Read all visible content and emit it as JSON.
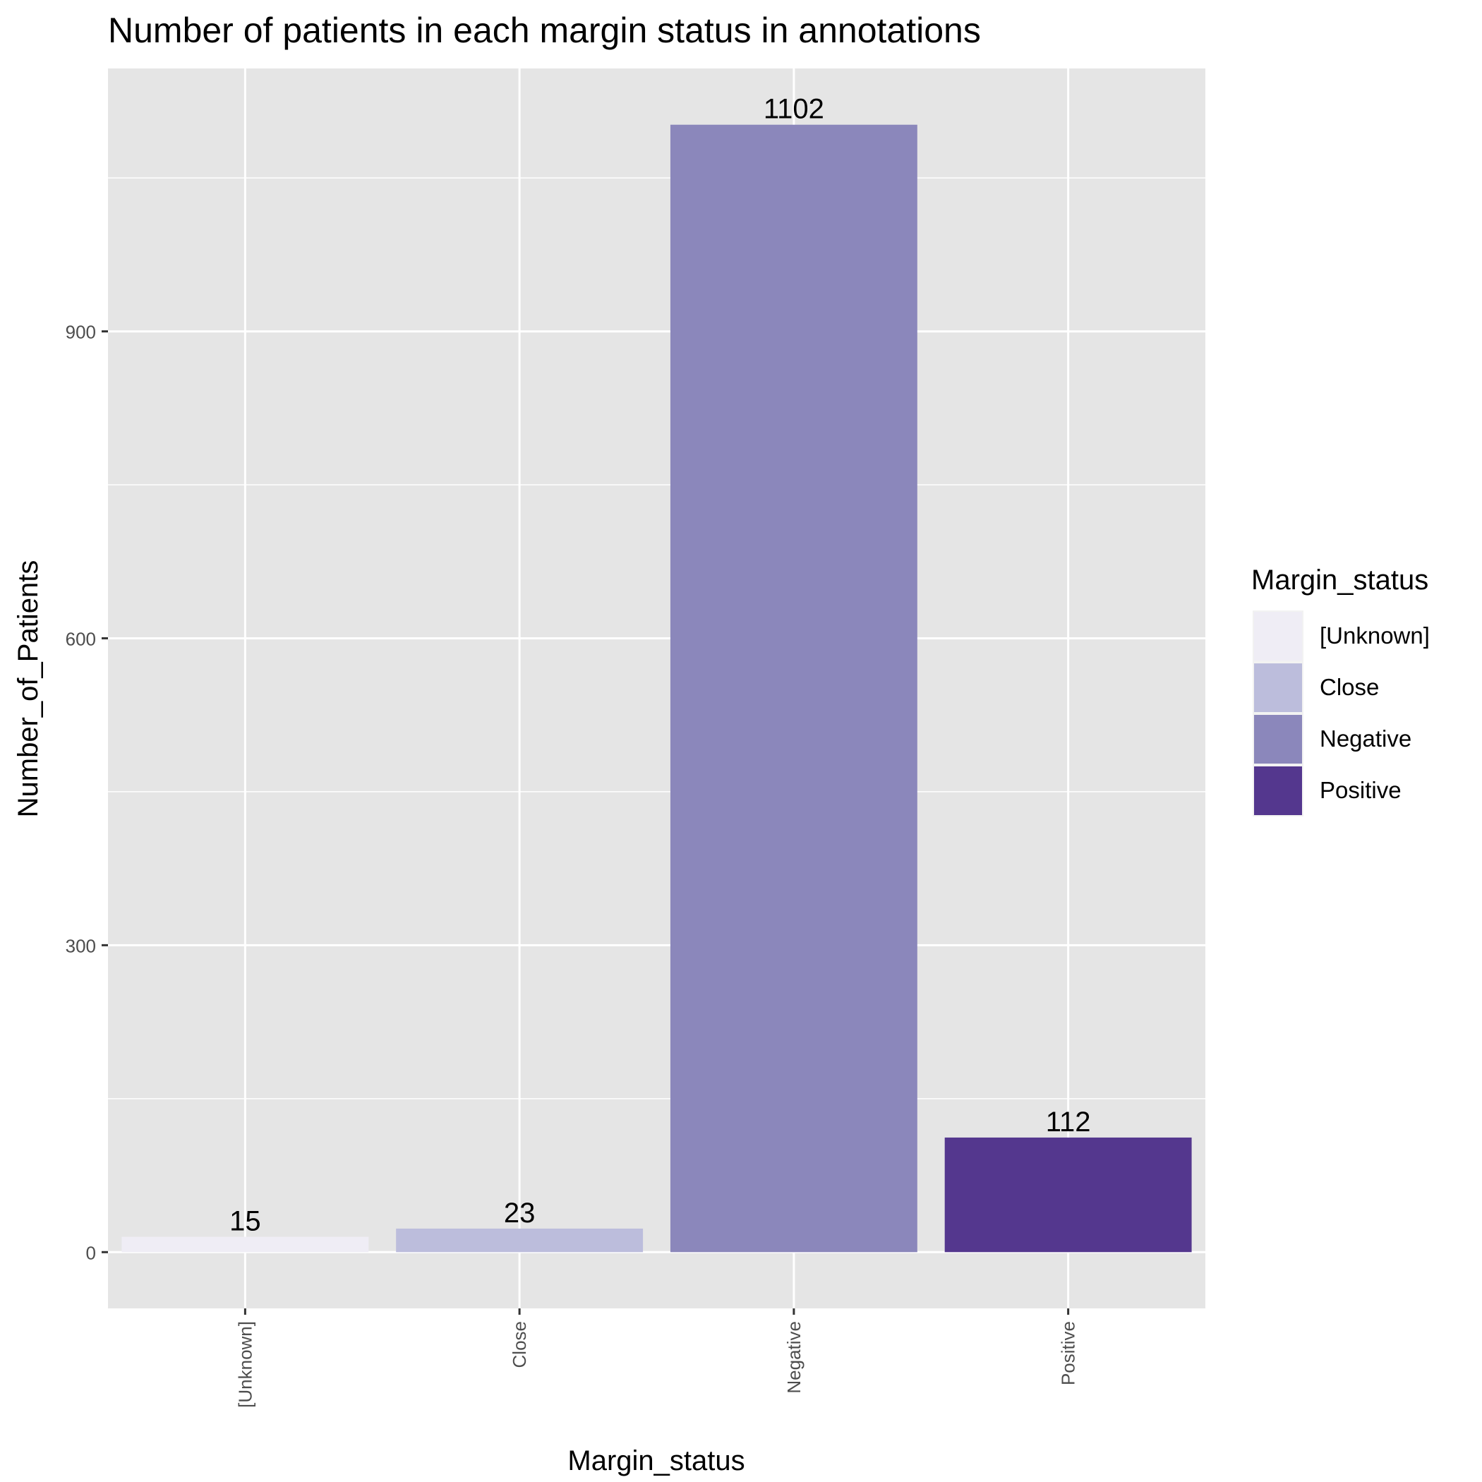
{
  "chart_data": {
    "type": "bar",
    "title": "Number of patients in each margin status in annotations",
    "xlabel": "Margin_status",
    "ylabel": "Number_of_Patients",
    "categories": [
      "[Unknown]",
      "Close",
      "Negative",
      "Positive"
    ],
    "values": [
      15,
      23,
      1102,
      112
    ],
    "data_labels": [
      "15",
      "23",
      "1102",
      "112"
    ],
    "ylim": [
      -55,
      1157
    ],
    "y_ticks": [
      0,
      300,
      600,
      900
    ],
    "y_tick_labels": [
      "0",
      "300",
      "600",
      "900"
    ],
    "y_minor_gridlines": [
      150,
      450,
      750,
      1050
    ],
    "x_tick_label_rotation": "vertical",
    "grid": true,
    "colors": [
      "#efedf5",
      "#bcbddc",
      "#8b87bb",
      "#54378e"
    ],
    "panel_background": "#e5e5e5",
    "legend": {
      "title": "Margin_status",
      "placement": "right",
      "entries": [
        "[Unknown]",
        "Close",
        "Negative",
        "Positive"
      ]
    }
  }
}
